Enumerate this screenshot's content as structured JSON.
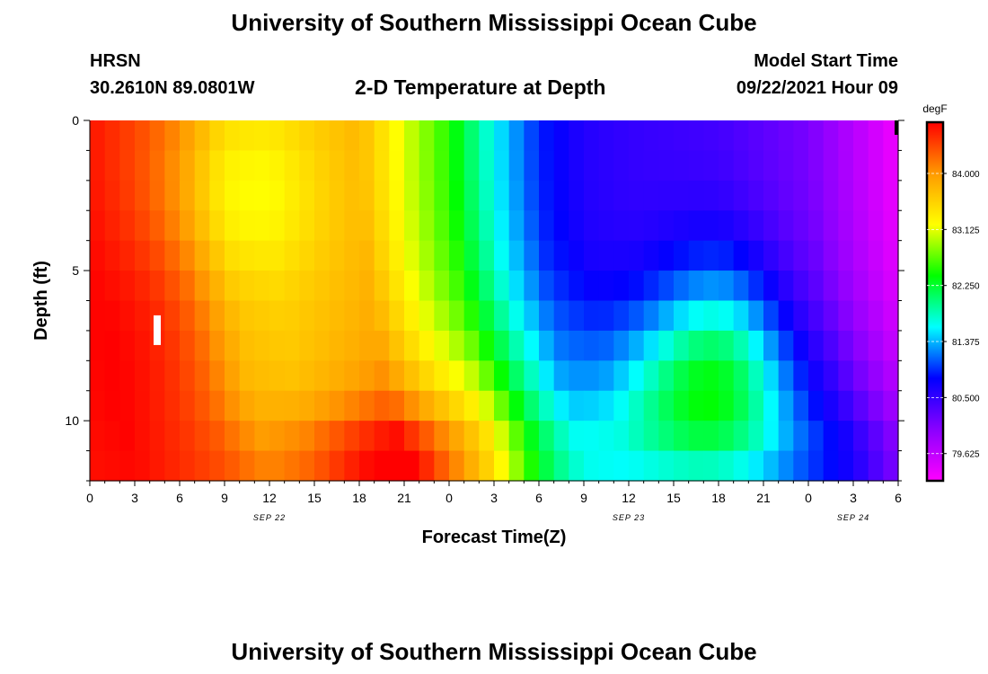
{
  "page": {
    "title_top": "University of Southern Mississippi Ocean Cube",
    "title_bottom": "University of Southern Mississippi Ocean Cube",
    "station": "HRSN",
    "coords": "30.2610N  89.0801W",
    "model_start_label": "Model Start Time",
    "model_start_value": "09/22/2021 Hour 09"
  },
  "chart_data": {
    "type": "heatmap",
    "title": "2-D Temperature at Depth",
    "xlabel": "Forecast Time(Z)",
    "ylabel": "Depth (ft)",
    "x_hours_range": [
      0,
      54
    ],
    "y_range": [
      0,
      12
    ],
    "y_ticks": [
      0,
      5,
      10
    ],
    "x_tick_labels": [
      "0",
      "3",
      "6",
      "9",
      "12",
      "15",
      "18",
      "21",
      "0",
      "3",
      "6",
      "9",
      "12",
      "15",
      "18",
      "21",
      "0",
      "3",
      "6"
    ],
    "date_labels": [
      {
        "label": "SEP 22",
        "hour": 12
      },
      {
        "label": "SEP 23",
        "hour": 36
      },
      {
        "label": "SEP 24",
        "hour": 51
      }
    ],
    "colorbar": {
      "unit": "degF",
      "min": 79.2,
      "max": 84.8,
      "tick_labels": [
        "84.000",
        "83.125",
        "82.250",
        "81.375",
        "80.500",
        "79.625"
      ],
      "tick_values": [
        84.0,
        83.125,
        82.25,
        81.375,
        80.5,
        79.625
      ],
      "colors": [
        "#ff00ff",
        "#8a00ff",
        "#0000ff",
        "#00ffff",
        "#00ff00",
        "#ffff00",
        "#ff9a00",
        "#ff0000"
      ]
    },
    "grid": false,
    "surface_temperature_degF": {
      "hours": [
        0,
        4,
        6,
        9,
        12,
        18,
        21,
        24,
        27,
        30,
        33,
        36,
        42,
        48,
        54
      ],
      "values": [
        84.7,
        84.4,
        84.2,
        83.7,
        83.6,
        83.8,
        83.1,
        82.5,
        81.6,
        80.9,
        80.6,
        80.5,
        80.4,
        80.1,
        79.3
      ]
    },
    "markers": [
      {
        "hour": 4.5,
        "depth": 7.0,
        "color": "#ffffff"
      },
      {
        "hour": 54,
        "depth": 0.2,
        "color": "#000000"
      }
    ]
  }
}
